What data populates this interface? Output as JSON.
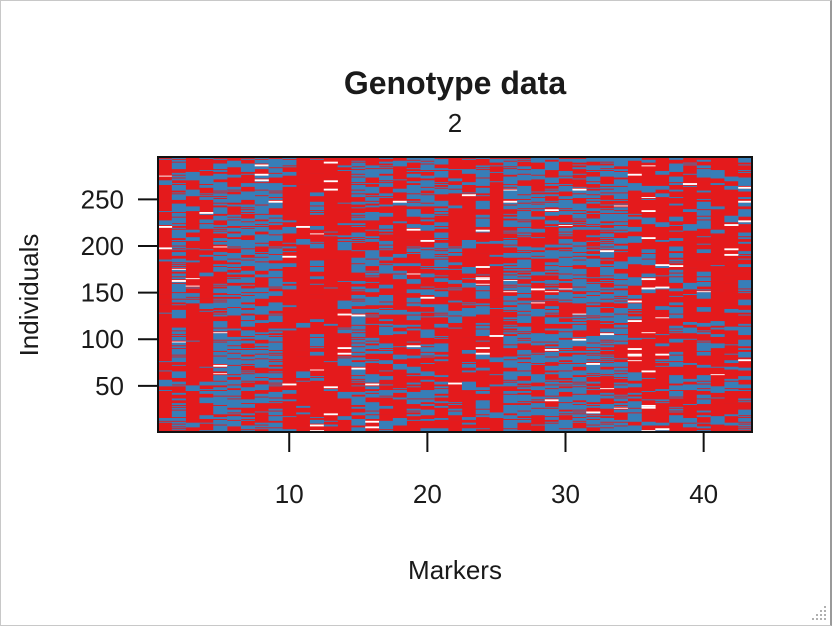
{
  "chart_data": {
    "type": "heatmap",
    "title": "Genotype data",
    "subtitle": "2",
    "xlabel": "Markers",
    "ylabel": "Individuals",
    "x_ticks": [
      10,
      20,
      30,
      40
    ],
    "y_ticks": [
      50,
      100,
      150,
      200,
      250
    ],
    "xlim": [
      0.5,
      43.5
    ],
    "ylim": [
      0.5,
      295.5
    ],
    "n_markers": 43,
    "n_individuals": 295,
    "legend": [
      {
        "value": 0,
        "color": "#E41A1C"
      },
      {
        "value": 2,
        "color": "#377EB8"
      },
      {
        "value": "NA",
        "color": "#FFFFFF"
      }
    ],
    "marker_blue_fraction": [
      0.15,
      0.75,
      0.2,
      0.35,
      0.8,
      0.75,
      0.7,
      0.7,
      0.8,
      0.25,
      0.15,
      0.25,
      0.15,
      0.2,
      0.7,
      0.6,
      0.7,
      0.35,
      0.45,
      0.6,
      0.7,
      0.25,
      0.2,
      0.55,
      0.15,
      0.85,
      0.85,
      0.45,
      0.65,
      0.75,
      0.7,
      0.75,
      0.7,
      0.75,
      0.25,
      0.3,
      0.2,
      0.7,
      0.25,
      0.45,
      0.25,
      0.2,
      0.5
    ],
    "marker_missing_fraction": [
      0.03,
      0.02,
      0.02,
      0.03,
      0.04,
      0.01,
      0.01,
      0.02,
      0.03,
      0.01,
      0.02,
      0.02,
      0.05,
      0.04,
      0.02,
      0.01,
      0.02,
      0.02,
      0.02,
      0.03,
      0.02,
      0.01,
      0.02,
      0.04,
      0.01,
      0.03,
      0.02,
      0.01,
      0.03,
      0.02,
      0.02,
      0.03,
      0.01,
      0.02,
      0.06,
      0.05,
      0.04,
      0.03,
      0.02,
      0.02,
      0.01,
      0.02,
      0.04
    ]
  }
}
